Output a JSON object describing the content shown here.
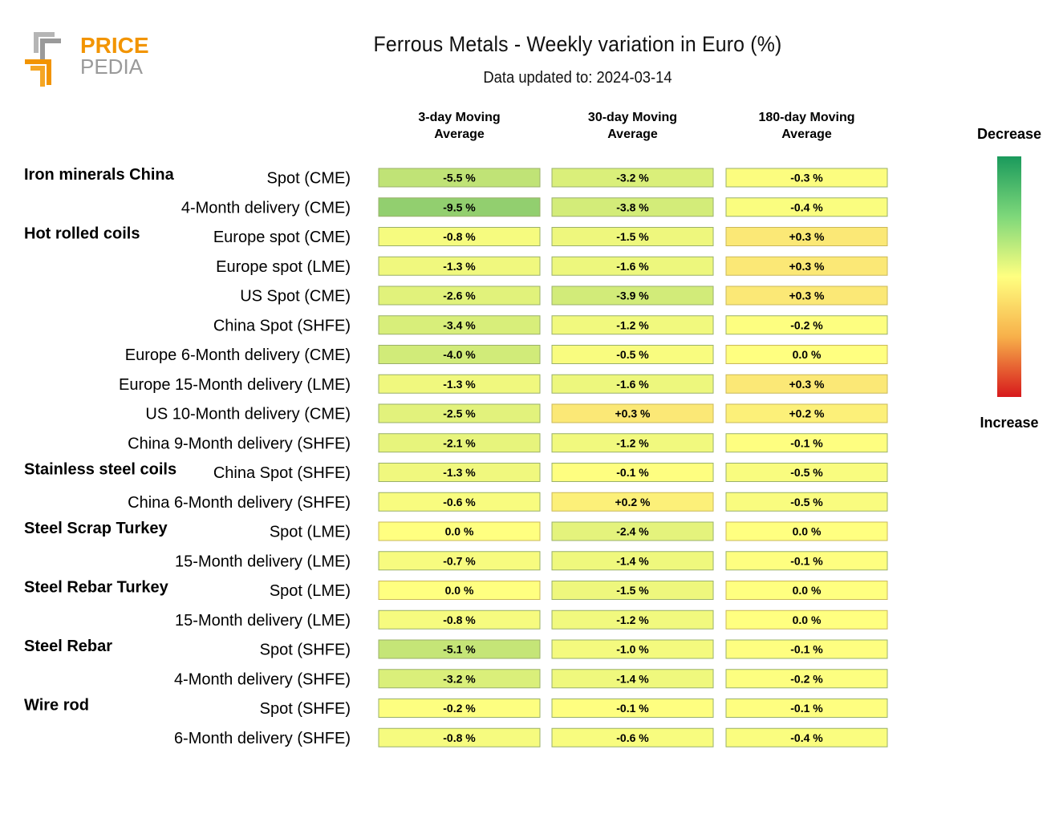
{
  "logo": {
    "line1": "PRICE",
    "line2": "PEDIA",
    "colors": {
      "orange": "#f29400",
      "gray": "#9a9a9a"
    }
  },
  "header": {
    "title": "Ferrous Metals - Weekly variation in Euro (%)",
    "subtitle": "Data updated to: 2024-03-14"
  },
  "chart_data": {
    "type": "heatmap",
    "columns": [
      [
        "3-day Moving",
        "Average"
      ],
      [
        "30-day Moving",
        "Average"
      ],
      [
        "180-day Moving",
        "Average"
      ]
    ],
    "rows": [
      {
        "group": "Iron minerals China",
        "label": "Spot (CME)",
        "values": [
          "-5.5 %",
          "-3.2 %",
          "-0.3 %"
        ]
      },
      {
        "group": "",
        "label": "4-Month delivery (CME)",
        "values": [
          "-9.5 %",
          "-3.8 %",
          "-0.4 %"
        ]
      },
      {
        "group": "Hot rolled coils",
        "label": "Europe spot (CME)",
        "values": [
          "-0.8 %",
          "-1.5 %",
          "+0.3 %"
        ]
      },
      {
        "group": "",
        "label": "Europe spot (LME)",
        "values": [
          "-1.3 %",
          "-1.6 %",
          "+0.3 %"
        ]
      },
      {
        "group": "",
        "label": "US Spot (CME)",
        "values": [
          "-2.6 %",
          "-3.9 %",
          "+0.3 %"
        ]
      },
      {
        "group": "",
        "label": "China Spot (SHFE)",
        "values": [
          "-3.4 %",
          "-1.2 %",
          "-0.2 %"
        ]
      },
      {
        "group": "",
        "label": "Europe 6-Month delivery (CME)",
        "values": [
          "-4.0 %",
          "-0.5 %",
          "0.0 %"
        ]
      },
      {
        "group": "",
        "label": "Europe 15-Month delivery (LME)",
        "values": [
          "-1.3 %",
          "-1.6 %",
          "+0.3 %"
        ]
      },
      {
        "group": "",
        "label": "US 10-Month delivery (CME)",
        "values": [
          "-2.5 %",
          "+0.3 %",
          "+0.2 %"
        ]
      },
      {
        "group": "",
        "label": "China 9-Month delivery (SHFE)",
        "values": [
          "-2.1 %",
          "-1.2 %",
          "-0.1 %"
        ]
      },
      {
        "group": "Stainless steel coils",
        "label": "China Spot (SHFE)",
        "values": [
          "-1.3 %",
          "-0.1 %",
          "-0.5 %"
        ]
      },
      {
        "group": "",
        "label": "China 6-Month delivery (SHFE)",
        "values": [
          "-0.6 %",
          "+0.2 %",
          "-0.5 %"
        ]
      },
      {
        "group": "Steel Scrap Turkey",
        "label": "Spot (LME)",
        "values": [
          "0.0 %",
          "-2.4 %",
          "0.0 %"
        ]
      },
      {
        "group": "",
        "label": "15-Month delivery (LME)",
        "values": [
          "-0.7 %",
          "-1.4 %",
          "-0.1 %"
        ]
      },
      {
        "group": "Steel Rebar Turkey",
        "label": "Spot (LME)",
        "values": [
          "0.0 %",
          "-1.5 %",
          "0.0 %"
        ]
      },
      {
        "group": "",
        "label": "15-Month delivery (LME)",
        "values": [
          "-0.8 %",
          "-1.2 %",
          "0.0 %"
        ]
      },
      {
        "group": "Steel Rebar",
        "label": "Spot (SHFE)",
        "values": [
          "-5.1 %",
          "-1.0 %",
          "-0.1 %"
        ]
      },
      {
        "group": "",
        "label": "4-Month delivery (SHFE)",
        "values": [
          "-3.2 %",
          "-1.4 %",
          "-0.2 %"
        ]
      },
      {
        "group": "Wire rod",
        "label": "Spot (SHFE)",
        "values": [
          "-0.2 %",
          "-0.1 %",
          "-0.1 %"
        ]
      },
      {
        "group": "",
        "label": "6-Month delivery (SHFE)",
        "values": [
          "-0.8 %",
          "-0.6 %",
          "-0.4 %"
        ]
      }
    ],
    "legend": {
      "top_label": "Decrease",
      "bottom_label": "Increase",
      "placement": "right"
    },
    "color_scale": {
      "decrease": "#1a9a5c",
      "mid": "#ffff80",
      "increase": "#d7191c"
    }
  }
}
